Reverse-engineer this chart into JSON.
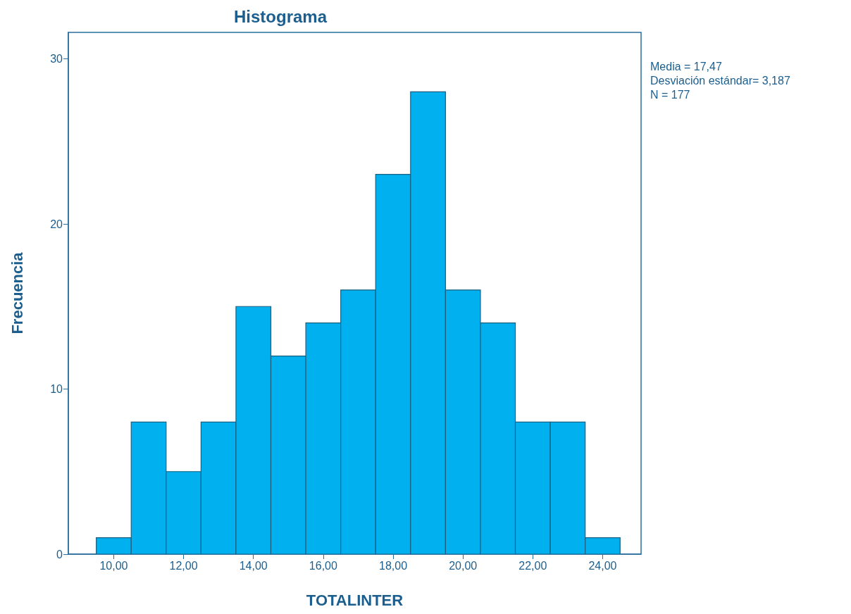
{
  "chart_data": {
    "type": "histogram",
    "title": "Histograma",
    "xlabel": "TOTALINTER",
    "ylabel": "Frecuencia",
    "bins": [
      9.5,
      10.5,
      11.5,
      12.5,
      13.5,
      14.5,
      15.5,
      16.5,
      17.5,
      18.5,
      19.5,
      20.5,
      21.5,
      22.5,
      23.5,
      24.5
    ],
    "values": [
      1,
      8,
      5,
      8,
      15,
      12,
      14,
      16,
      23,
      28,
      16,
      14,
      8,
      8,
      1
    ],
    "color": "#00b0ef",
    "xlim": [
      8.7,
      25.1
    ],
    "xticks": [
      {
        "value": 10,
        "label": "10,00"
      },
      {
        "value": 12,
        "label": "12,00"
      },
      {
        "value": 14,
        "label": "14,00"
      },
      {
        "value": 16,
        "label": "16,00"
      },
      {
        "value": 18,
        "label": "18,00"
      },
      {
        "value": 20,
        "label": "20,00"
      },
      {
        "value": 22,
        "label": "22,00"
      },
      {
        "value": 24,
        "label": "24,00"
      }
    ],
    "ylim": [
      0,
      31.6
    ],
    "yticks": [
      0,
      10,
      20,
      30
    ],
    "annotations": [
      "Media = 17,47",
      "Desviación estándar= 3,187",
      "N = 177"
    ],
    "grid": false
  }
}
